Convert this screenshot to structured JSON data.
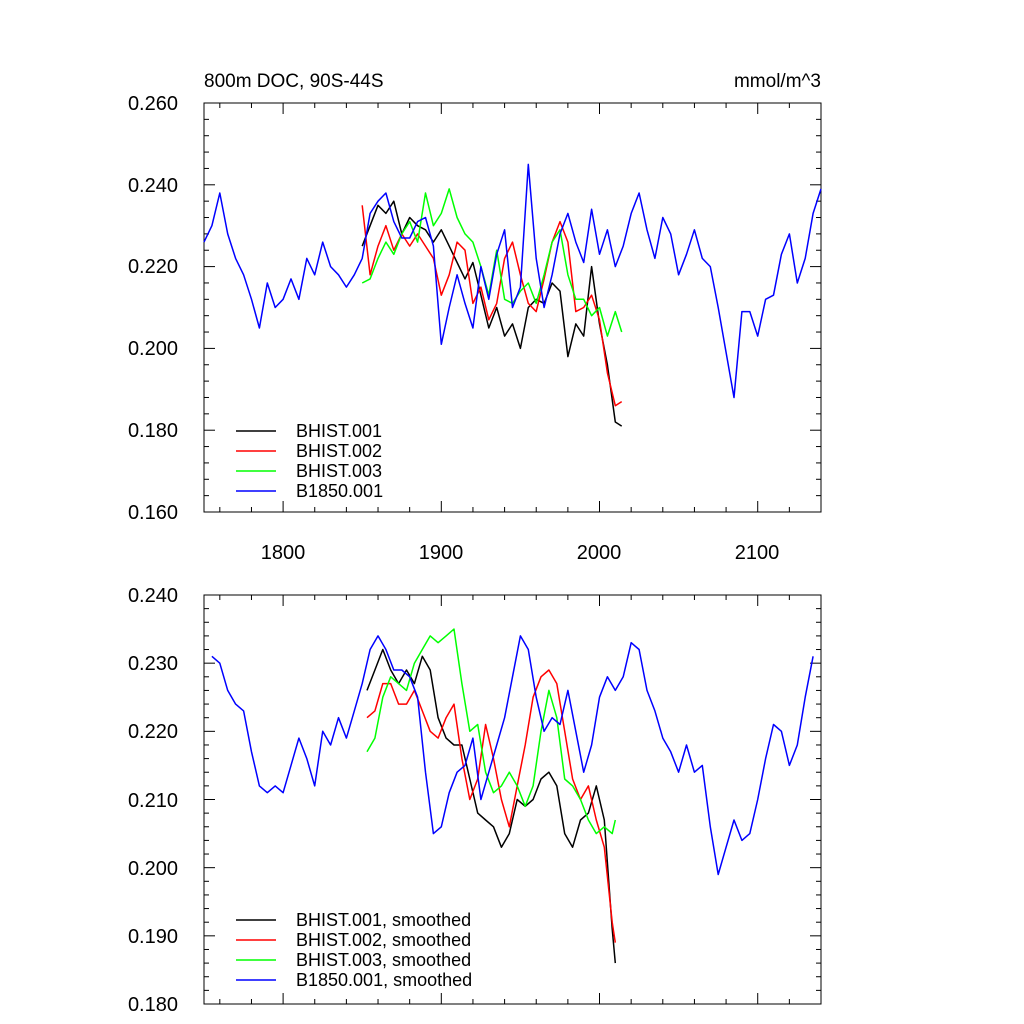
{
  "chart_data": [
    {
      "type": "line",
      "title": "800m DOC, 90S-44S",
      "units": "mmol/m^3",
      "xlim": [
        1750,
        2140
      ],
      "ylim": [
        0.16,
        0.26
      ],
      "x_ticks": [
        1800,
        1900,
        2000,
        2100
      ],
      "x_tick_labels": [
        "1800",
        "1900",
        "2000",
        "2100"
      ],
      "y_ticks": [
        0.16,
        0.18,
        0.2,
        0.22,
        0.24,
        0.26
      ],
      "y_tick_labels": [
        "0.160",
        "0.180",
        "0.200",
        "0.220",
        "0.240",
        "0.260"
      ],
      "grid": false,
      "legend_position": "bottom-left",
      "series": [
        {
          "name": "BHIST.001",
          "color": "#000000",
          "x": [
            1850,
            1855,
            1860,
            1865,
            1870,
            1875,
            1880,
            1885,
            1890,
            1895,
            1900,
            1905,
            1910,
            1915,
            1920,
            1925,
            1930,
            1935,
            1940,
            1945,
            1950,
            1955,
            1960,
            1965,
            1970,
            1975,
            1980,
            1985,
            1990,
            1995,
            2000,
            2005,
            2010,
            2014
          ],
          "y": [
            0.225,
            0.23,
            0.235,
            0.233,
            0.236,
            0.228,
            0.232,
            0.23,
            0.229,
            0.226,
            0.229,
            0.225,
            0.221,
            0.217,
            0.221,
            0.213,
            0.205,
            0.21,
            0.203,
            0.206,
            0.2,
            0.21,
            0.212,
            0.211,
            0.216,
            0.214,
            0.198,
            0.206,
            0.203,
            0.22,
            0.206,
            0.196,
            0.182,
            0.181
          ]
        },
        {
          "name": "BHIST.002",
          "color": "#ff0000",
          "x": [
            1850,
            1855,
            1860,
            1865,
            1870,
            1875,
            1880,
            1885,
            1890,
            1895,
            1900,
            1905,
            1910,
            1915,
            1920,
            1925,
            1930,
            1935,
            1940,
            1945,
            1950,
            1955,
            1960,
            1965,
            1970,
            1975,
            1980,
            1985,
            1990,
            1995,
            2000,
            2005,
            2010,
            2014
          ],
          "y": [
            0.235,
            0.218,
            0.225,
            0.23,
            0.224,
            0.228,
            0.225,
            0.228,
            0.225,
            0.222,
            0.213,
            0.218,
            0.226,
            0.224,
            0.211,
            0.215,
            0.207,
            0.211,
            0.222,
            0.226,
            0.218,
            0.211,
            0.209,
            0.217,
            0.226,
            0.231,
            0.226,
            0.209,
            0.21,
            0.213,
            0.207,
            0.194,
            0.186,
            0.187
          ]
        },
        {
          "name": "BHIST.003",
          "color": "#00ff00",
          "x": [
            1850,
            1855,
            1860,
            1865,
            1870,
            1875,
            1880,
            1885,
            1890,
            1895,
            1900,
            1905,
            1910,
            1915,
            1920,
            1925,
            1930,
            1935,
            1940,
            1945,
            1950,
            1955,
            1960,
            1965,
            1970,
            1975,
            1980,
            1985,
            1990,
            1995,
            2000,
            2005,
            2010,
            2014
          ],
          "y": [
            0.216,
            0.217,
            0.222,
            0.226,
            0.223,
            0.228,
            0.231,
            0.226,
            0.238,
            0.23,
            0.233,
            0.239,
            0.232,
            0.228,
            0.226,
            0.22,
            0.213,
            0.224,
            0.212,
            0.211,
            0.214,
            0.216,
            0.211,
            0.218,
            0.226,
            0.229,
            0.218,
            0.212,
            0.212,
            0.208,
            0.21,
            0.203,
            0.209,
            0.204
          ]
        },
        {
          "name": "B1850.001",
          "color": "#0000ff",
          "x": [
            1750,
            1755,
            1760,
            1765,
            1770,
            1775,
            1780,
            1785,
            1790,
            1795,
            1800,
            1805,
            1810,
            1815,
            1820,
            1825,
            1830,
            1835,
            1840,
            1845,
            1850,
            1855,
            1860,
            1865,
            1870,
            1875,
            1880,
            1885,
            1890,
            1895,
            1900,
            1905,
            1910,
            1915,
            1920,
            1925,
            1930,
            1935,
            1940,
            1945,
            1950,
            1955,
            1960,
            1965,
            1970,
            1975,
            1980,
            1985,
            1990,
            1995,
            2000,
            2005,
            2010,
            2015,
            2020,
            2025,
            2030,
            2035,
            2040,
            2045,
            2050,
            2055,
            2060,
            2065,
            2070,
            2075,
            2080,
            2085,
            2090,
            2095,
            2100,
            2105,
            2110,
            2115,
            2120,
            2125,
            2130,
            2135,
            2140
          ],
          "y": [
            0.226,
            0.23,
            0.238,
            0.228,
            0.222,
            0.218,
            0.212,
            0.205,
            0.216,
            0.21,
            0.212,
            0.217,
            0.212,
            0.222,
            0.218,
            0.226,
            0.22,
            0.218,
            0.215,
            0.218,
            0.222,
            0.233,
            0.236,
            0.238,
            0.231,
            0.227,
            0.227,
            0.231,
            0.232,
            0.225,
            0.201,
            0.21,
            0.218,
            0.211,
            0.205,
            0.22,
            0.212,
            0.223,
            0.229,
            0.21,
            0.215,
            0.245,
            0.222,
            0.21,
            0.218,
            0.228,
            0.233,
            0.226,
            0.221,
            0.234,
            0.223,
            0.229,
            0.22,
            0.225,
            0.233,
            0.238,
            0.229,
            0.222,
            0.232,
            0.228,
            0.218,
            0.223,
            0.229,
            0.222,
            0.22,
            0.21,
            0.199,
            0.188,
            0.209,
            0.209,
            0.203,
            0.212,
            0.213,
            0.223,
            0.228,
            0.216,
            0.222,
            0.233,
            0.239
          ]
        }
      ]
    },
    {
      "type": "line",
      "title": "",
      "xlim": [
        1750,
        2140
      ],
      "ylim": [
        0.18,
        0.24
      ],
      "x_ticks": [
        1800,
        1900,
        2000,
        2100
      ],
      "y_ticks": [
        0.18,
        0.19,
        0.2,
        0.21,
        0.22,
        0.23,
        0.24
      ],
      "y_tick_labels": [
        "0.180",
        "0.190",
        "0.200",
        "0.210",
        "0.220",
        "0.230",
        "0.240"
      ],
      "grid": false,
      "legend_position": "bottom-left",
      "series": [
        {
          "name": "BHIST.001, smoothed",
          "color": "#000000",
          "x": [
            1853,
            1858,
            1863,
            1868,
            1873,
            1878,
            1883,
            1888,
            1893,
            1898,
            1903,
            1908,
            1913,
            1918,
            1923,
            1928,
            1933,
            1938,
            1943,
            1948,
            1953,
            1958,
            1963,
            1968,
            1973,
            1978,
            1983,
            1988,
            1993,
            1998,
            2003,
            2008,
            2010
          ],
          "y": [
            0.226,
            0.229,
            0.232,
            0.229,
            0.227,
            0.229,
            0.227,
            0.231,
            0.229,
            0.222,
            0.219,
            0.218,
            0.218,
            0.213,
            0.208,
            0.207,
            0.206,
            0.203,
            0.205,
            0.21,
            0.209,
            0.21,
            0.213,
            0.214,
            0.212,
            0.205,
            0.203,
            0.207,
            0.208,
            0.212,
            0.207,
            0.191,
            0.186
          ]
        },
        {
          "name": "BHIST.002, smoothed",
          "color": "#ff0000",
          "x": [
            1853,
            1858,
            1863,
            1868,
            1873,
            1878,
            1883,
            1888,
            1893,
            1898,
            1903,
            1908,
            1913,
            1918,
            1923,
            1928,
            1933,
            1938,
            1943,
            1948,
            1953,
            1958,
            1963,
            1968,
            1973,
            1978,
            1983,
            1988,
            1993,
            1998,
            2003,
            2008,
            2010
          ],
          "y": [
            0.222,
            0.223,
            0.227,
            0.227,
            0.224,
            0.224,
            0.226,
            0.223,
            0.22,
            0.219,
            0.222,
            0.224,
            0.216,
            0.21,
            0.213,
            0.221,
            0.216,
            0.21,
            0.206,
            0.212,
            0.218,
            0.225,
            0.228,
            0.229,
            0.227,
            0.22,
            0.213,
            0.21,
            0.212,
            0.207,
            0.203,
            0.192,
            0.189
          ]
        },
        {
          "name": "BHIST.003, smoothed",
          "color": "#00ff00",
          "x": [
            1853,
            1858,
            1863,
            1868,
            1873,
            1878,
            1883,
            1888,
            1893,
            1898,
            1903,
            1908,
            1913,
            1918,
            1923,
            1928,
            1933,
            1938,
            1943,
            1948,
            1953,
            1958,
            1963,
            1968,
            1973,
            1978,
            1983,
            1988,
            1993,
            1998,
            2003,
            2008,
            2010
          ],
          "y": [
            0.217,
            0.219,
            0.225,
            0.228,
            0.227,
            0.226,
            0.23,
            0.232,
            0.234,
            0.233,
            0.234,
            0.235,
            0.227,
            0.22,
            0.221,
            0.214,
            0.211,
            0.212,
            0.214,
            0.212,
            0.209,
            0.212,
            0.22,
            0.226,
            0.222,
            0.213,
            0.212,
            0.21,
            0.207,
            0.205,
            0.206,
            0.205,
            0.207
          ]
        },
        {
          "name": "B1850.001, smoothed",
          "color": "#0000ff",
          "x": [
            1755,
            1760,
            1765,
            1770,
            1775,
            1780,
            1785,
            1790,
            1795,
            1800,
            1805,
            1810,
            1815,
            1820,
            1825,
            1830,
            1835,
            1840,
            1845,
            1850,
            1855,
            1860,
            1865,
            1870,
            1875,
            1880,
            1885,
            1890,
            1895,
            1900,
            1905,
            1910,
            1915,
            1920,
            1925,
            1930,
            1935,
            1940,
            1945,
            1950,
            1955,
            1960,
            1965,
            1970,
            1975,
            1980,
            1985,
            1990,
            1995,
            2000,
            2005,
            2010,
            2015,
            2020,
            2025,
            2030,
            2035,
            2040,
            2045,
            2050,
            2055,
            2060,
            2065,
            2070,
            2075,
            2080,
            2085,
            2090,
            2095,
            2100,
            2105,
            2110,
            2115,
            2120,
            2125,
            2130,
            2135
          ],
          "y": [
            0.231,
            0.23,
            0.226,
            0.224,
            0.223,
            0.217,
            0.212,
            0.211,
            0.212,
            0.211,
            0.215,
            0.219,
            0.216,
            0.212,
            0.22,
            0.218,
            0.222,
            0.219,
            0.223,
            0.227,
            0.232,
            0.234,
            0.232,
            0.229,
            0.229,
            0.228,
            0.225,
            0.214,
            0.205,
            0.206,
            0.211,
            0.214,
            0.215,
            0.219,
            0.21,
            0.214,
            0.218,
            0.222,
            0.228,
            0.234,
            0.232,
            0.225,
            0.22,
            0.222,
            0.221,
            0.226,
            0.22,
            0.214,
            0.218,
            0.225,
            0.228,
            0.226,
            0.228,
            0.233,
            0.232,
            0.226,
            0.223,
            0.219,
            0.217,
            0.214,
            0.218,
            0.214,
            0.215,
            0.206,
            0.199,
            0.203,
            0.207,
            0.204,
            0.205,
            0.21,
            0.216,
            0.221,
            0.22,
            0.215,
            0.218,
            0.225,
            0.231
          ]
        }
      ]
    }
  ]
}
